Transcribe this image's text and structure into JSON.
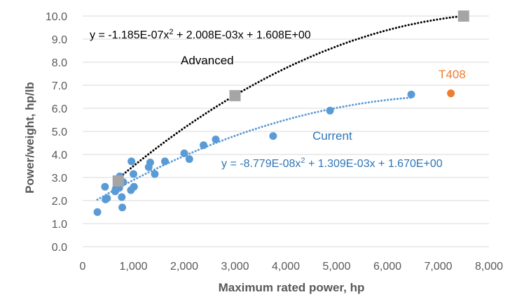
{
  "chart_data": {
    "type": "scatter",
    "title": "",
    "xlabel": "Maximum rated power, hp",
    "ylabel": "Power/weight, hp/lb",
    "xlim": [
      0,
      8000
    ],
    "ylim": [
      0,
      10
    ],
    "x_ticks": [
      0,
      1000,
      2000,
      3000,
      4000,
      5000,
      6000,
      7000,
      8000
    ],
    "x_tick_labels": [
      "0",
      "1,000",
      "2,000",
      "3,000",
      "4,000",
      "5,000",
      "6,000",
      "7,000",
      "8,000"
    ],
    "y_ticks": [
      0,
      1,
      2,
      3,
      4,
      5,
      6,
      7,
      8,
      9,
      10
    ],
    "y_tick_labels": [
      "0.0",
      "1.0",
      "2.0",
      "3.0",
      "4.0",
      "5.0",
      "6.0",
      "7.0",
      "8.0",
      "9.0",
      "10.0"
    ],
    "grid": "horizontal",
    "colors": {
      "current": "#5b9bd5",
      "advanced": "#a5a5a5",
      "t408": "#ed7d31",
      "advanced_trend": "#000000",
      "axis_text": "#595959",
      "grid": "#d9d9d9"
    },
    "series": [
      {
        "key": "current",
        "name": "Current",
        "color": "#5b9bd5",
        "marker": "circle",
        "points": [
          [
            290,
            1.5
          ],
          [
            440,
            2.6
          ],
          [
            450,
            2.05
          ],
          [
            480,
            2.1
          ],
          [
            640,
            2.4
          ],
          [
            650,
            2.5
          ],
          [
            690,
            2.85
          ],
          [
            720,
            2.55
          ],
          [
            730,
            3.05
          ],
          [
            770,
            2.15
          ],
          [
            780,
            1.7
          ],
          [
            800,
            2.8
          ],
          [
            950,
            2.45
          ],
          [
            960,
            3.7
          ],
          [
            1000,
            3.15
          ],
          [
            1010,
            2.6
          ],
          [
            1300,
            3.45
          ],
          [
            1330,
            3.65
          ],
          [
            1420,
            3.15
          ],
          [
            1620,
            3.7
          ],
          [
            2000,
            4.05
          ],
          [
            2100,
            3.8
          ],
          [
            2380,
            4.4
          ],
          [
            2620,
            4.65
          ],
          [
            3750,
            4.8
          ],
          [
            4870,
            5.9
          ],
          [
            6470,
            6.6
          ]
        ]
      },
      {
        "key": "advanced",
        "name": "Advanced",
        "color": "#a5a5a5",
        "marker": "square",
        "points": [
          [
            700,
            2.85
          ],
          [
            3000,
            6.55
          ],
          [
            7500,
            10.0
          ]
        ]
      },
      {
        "key": "t408",
        "name": "T408",
        "color": "#ed7d31",
        "marker": "circle",
        "points": [
          [
            7250,
            6.65
          ]
        ]
      }
    ],
    "trendlines": [
      {
        "series": "advanced",
        "coeffs": [
          -1.185e-07,
          0.002008,
          1.608
        ],
        "x_range": [
          650,
          7500
        ],
        "color": "#000000"
      },
      {
        "series": "current",
        "coeffs": [
          -8.779e-08,
          0.001309,
          1.67
        ],
        "x_range": [
          290,
          6470
        ],
        "color": "#5b9bd5"
      }
    ],
    "annotations": {
      "advanced_equation": {
        "pre": "y = -1.185E-07x",
        "sup": "2",
        "post": " + 2.008E-03x + 1.608E+00"
      },
      "current_equation": {
        "pre": "y = -8.779E-08x",
        "sup": "2",
        "post": " + 1.309E-03x + 1.670E+00"
      },
      "advanced_label": "Advanced",
      "current_label": "Current",
      "t408_label": "T408"
    }
  }
}
